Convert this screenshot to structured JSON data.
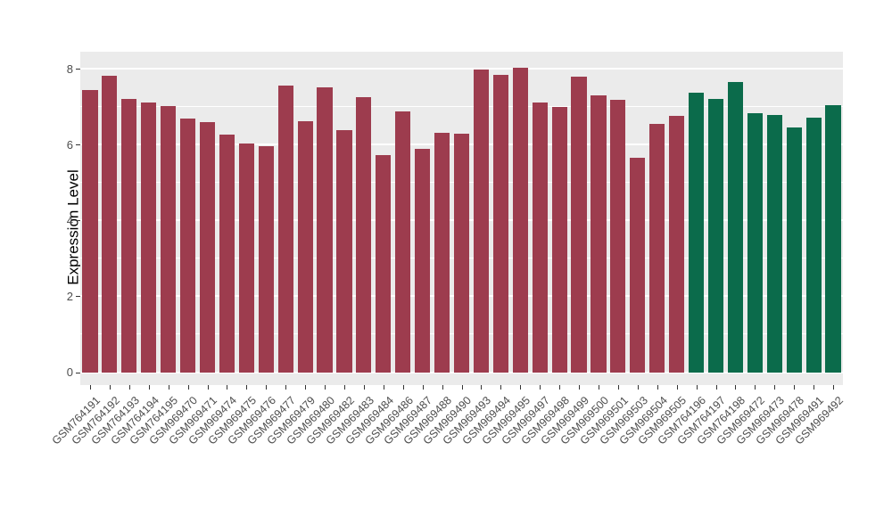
{
  "chart_data": {
    "type": "bar",
    "title": "",
    "xlabel": "",
    "ylabel": "Expression Level",
    "ylim": [
      0,
      8
    ],
    "yticks_major": [
      0,
      2,
      4,
      6,
      8
    ],
    "yticks_minor": [
      1,
      3,
      5,
      7
    ],
    "grid": "on",
    "legend_position": "none",
    "colors": {
      "group_red": "#9D3C4E",
      "group_green": "#0B6B4B",
      "panel_background": "#EBEBEB",
      "figure_background": "#FFFFFF"
    },
    "bars": [
      {
        "label": "GSM764191",
        "value": 7.45,
        "group": "red"
      },
      {
        "label": "GSM764192",
        "value": 7.82,
        "group": "red"
      },
      {
        "label": "GSM764193",
        "value": 7.2,
        "group": "red"
      },
      {
        "label": "GSM764194",
        "value": 7.1,
        "group": "red"
      },
      {
        "label": "GSM764195",
        "value": 7.02,
        "group": "red"
      },
      {
        "label": "GSM969470",
        "value": 6.68,
        "group": "red"
      },
      {
        "label": "GSM969471",
        "value": 6.6,
        "group": "red"
      },
      {
        "label": "GSM969474",
        "value": 6.27,
        "group": "red"
      },
      {
        "label": "GSM969475",
        "value": 6.02,
        "group": "red"
      },
      {
        "label": "GSM969476",
        "value": 5.97,
        "group": "red"
      },
      {
        "label": "GSM969477",
        "value": 7.55,
        "group": "red"
      },
      {
        "label": "GSM969479",
        "value": 6.62,
        "group": "red"
      },
      {
        "label": "GSM969480",
        "value": 7.5,
        "group": "red"
      },
      {
        "label": "GSM969482",
        "value": 6.38,
        "group": "red"
      },
      {
        "label": "GSM969483",
        "value": 7.25,
        "group": "red"
      },
      {
        "label": "GSM969484",
        "value": 5.73,
        "group": "red"
      },
      {
        "label": "GSM969486",
        "value": 6.88,
        "group": "red"
      },
      {
        "label": "GSM969487",
        "value": 5.9,
        "group": "red"
      },
      {
        "label": "GSM969488",
        "value": 6.32,
        "group": "red"
      },
      {
        "label": "GSM969490",
        "value": 6.3,
        "group": "red"
      },
      {
        "label": "GSM969493",
        "value": 7.97,
        "group": "red"
      },
      {
        "label": "GSM969494",
        "value": 7.85,
        "group": "red"
      },
      {
        "label": "GSM969495",
        "value": 8.02,
        "group": "red"
      },
      {
        "label": "GSM969497",
        "value": 7.12,
        "group": "red"
      },
      {
        "label": "GSM969498",
        "value": 7.0,
        "group": "red"
      },
      {
        "label": "GSM969499",
        "value": 7.8,
        "group": "red"
      },
      {
        "label": "GSM969500",
        "value": 7.3,
        "group": "red"
      },
      {
        "label": "GSM969501",
        "value": 7.18,
        "group": "red"
      },
      {
        "label": "GSM969503",
        "value": 5.65,
        "group": "red"
      },
      {
        "label": "GSM969504",
        "value": 6.55,
        "group": "red"
      },
      {
        "label": "GSM969505",
        "value": 6.75,
        "group": "red"
      },
      {
        "label": "GSM764196",
        "value": 7.38,
        "group": "green"
      },
      {
        "label": "GSM764197",
        "value": 7.2,
        "group": "green"
      },
      {
        "label": "GSM764198",
        "value": 7.65,
        "group": "green"
      },
      {
        "label": "GSM969472",
        "value": 6.82,
        "group": "green"
      },
      {
        "label": "GSM969473",
        "value": 6.78,
        "group": "green"
      },
      {
        "label": "GSM969478",
        "value": 6.45,
        "group": "green"
      },
      {
        "label": "GSM969491",
        "value": 6.72,
        "group": "green"
      },
      {
        "label": "GSM969492",
        "value": 7.05,
        "group": "green"
      }
    ]
  }
}
